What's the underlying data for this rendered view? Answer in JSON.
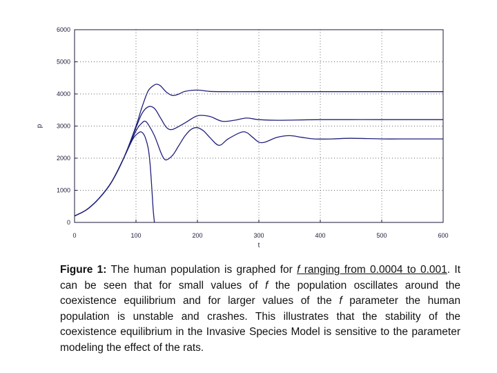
{
  "chart_data": {
    "type": "line",
    "xlabel": "t",
    "ylabel": "p",
    "xlim": [
      0,
      600
    ],
    "ylim": [
      0,
      6000
    ],
    "xticks": [
      "0",
      "100",
      "200",
      "300",
      "400",
      "500",
      "600"
    ],
    "yticks": [
      "0",
      "1000",
      "2000",
      "3000",
      "4000",
      "5000",
      "6000"
    ],
    "grid": true,
    "line_color": "#1f1f7a",
    "series": [
      {
        "x": [
          0,
          20,
          40,
          60,
          80,
          100,
          110,
          120,
          130,
          135,
          140,
          150,
          160,
          170,
          180,
          200,
          220,
          250,
          300,
          400,
          500,
          600
        ],
        "values": [
          200,
          400,
          750,
          1250,
          2000,
          3000,
          3600,
          4100,
          4280,
          4300,
          4250,
          4050,
          3950,
          4000,
          4080,
          4120,
          4080,
          4070,
          4070,
          4070,
          4070,
          4070
        ]
      },
      {
        "x": [
          0,
          20,
          40,
          60,
          80,
          100,
          110,
          120,
          130,
          140,
          150,
          160,
          180,
          200,
          220,
          240,
          260,
          280,
          300,
          330,
          400,
          500,
          600
        ],
        "values": [
          200,
          400,
          750,
          1250,
          2000,
          2950,
          3400,
          3600,
          3550,
          3250,
          2950,
          2900,
          3100,
          3320,
          3300,
          3150,
          3180,
          3250,
          3200,
          3180,
          3200,
          3200,
          3200
        ]
      },
      {
        "x": [
          0,
          20,
          40,
          60,
          80,
          100,
          110,
          115,
          120,
          130,
          140,
          145,
          150,
          160,
          170,
          180,
          190,
          200,
          210,
          220,
          235,
          250,
          270,
          280,
          290,
          300,
          310,
          330,
          350,
          370,
          390,
          420,
          450,
          500,
          550,
          600
        ],
        "values": [
          200,
          400,
          750,
          1250,
          2000,
          2850,
          3100,
          3150,
          3050,
          2700,
          2200,
          2000,
          1950,
          2100,
          2400,
          2700,
          2900,
          2950,
          2850,
          2650,
          2400,
          2600,
          2800,
          2800,
          2650,
          2500,
          2500,
          2650,
          2700,
          2650,
          2600,
          2600,
          2620,
          2600,
          2600,
          2600
        ]
      },
      {
        "x": [
          0,
          20,
          40,
          60,
          80,
          95,
          105,
          110,
          115,
          120,
          123,
          126,
          128,
          130
        ],
        "values": [
          200,
          400,
          750,
          1250,
          2000,
          2600,
          2800,
          2800,
          2650,
          2300,
          1800,
          1000,
          400,
          0
        ]
      }
    ]
  },
  "caption": {
    "label": "Figure 1:",
    "seg1": " The human population is graphed for ",
    "seg2_italic": "f",
    "seg2_rest": " ranging from 0.0004 to 0.001",
    "seg3": ". It can be seen that for small values of ",
    "seg4_italic": "f",
    "seg5": " the population oscillates around the coexistence equilibrium and for larger values of the ",
    "seg6_italic": "f",
    "seg7": " parameter the human population is unstable and crashes. This illustrates that the stability of the coexistence equilibrium in the Invasive Species Model is sensitive to the parameter modeling the effect of the rats."
  }
}
